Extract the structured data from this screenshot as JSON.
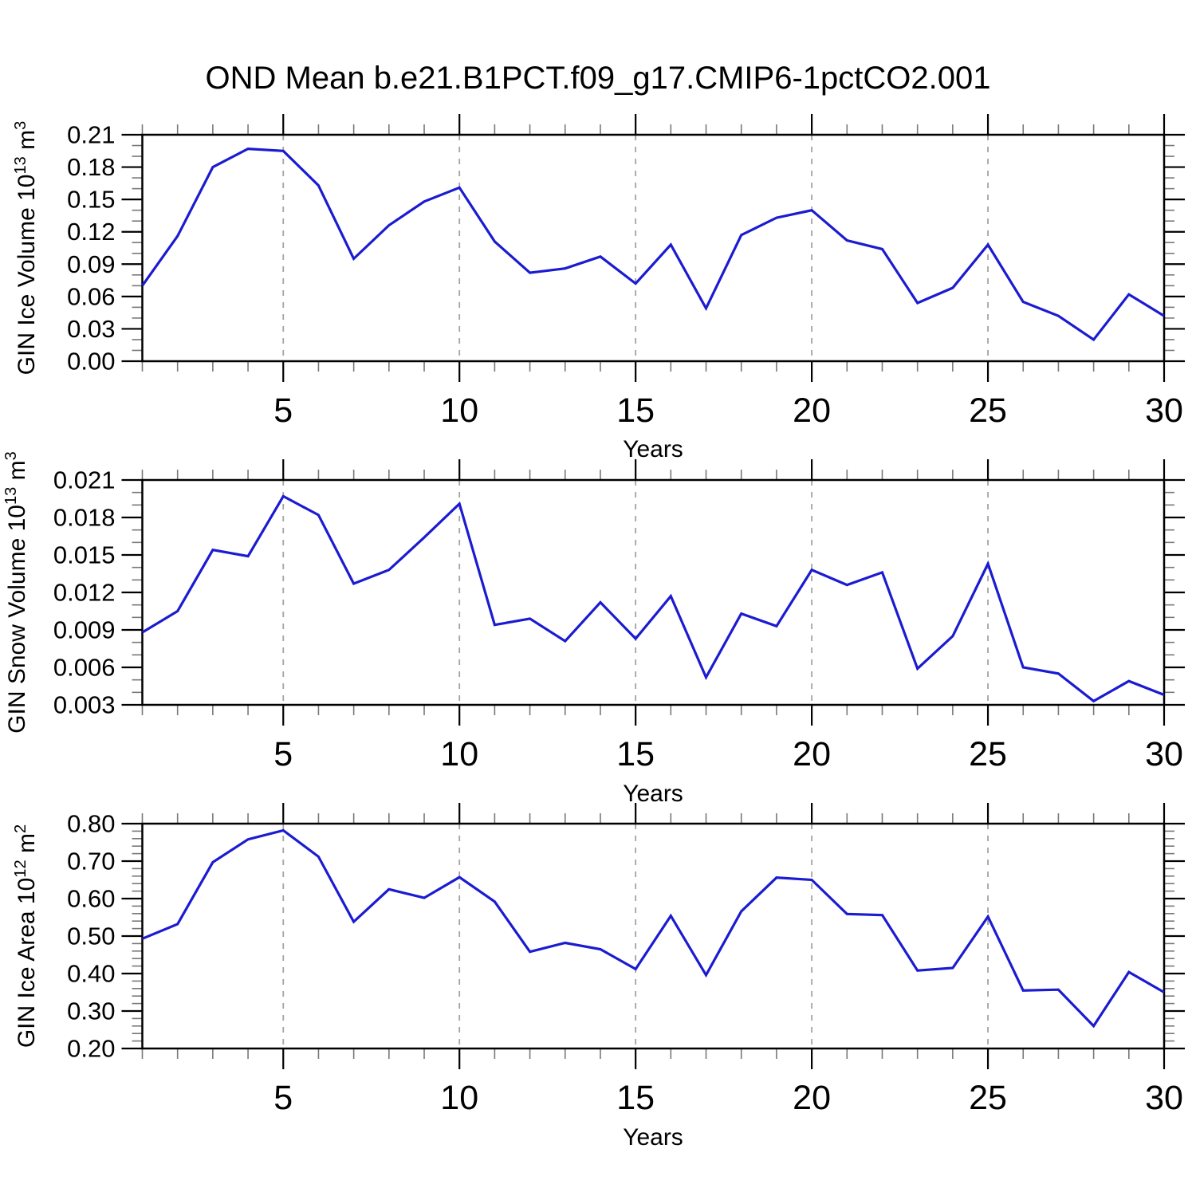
{
  "title": "OND Mean b.e21.B1PCT.f09_g17.CMIP6-1pctCO2.001",
  "colors": {
    "line": "#1b1bd1",
    "grid": "#a3a3a3",
    "axis": "#000000",
    "minor_tick": "#787878",
    "text": "#000000",
    "background": "#ffffff"
  },
  "chart_data": [
    {
      "type": "line",
      "title": "OND Mean b.e21.B1PCT.f09_g17.CMIP6-1pctCO2.001",
      "series_color": "#1b1bd1",
      "ylabel": {
        "prefix": "GIN Ice Volume 10",
        "exp": "13",
        "unit": " m",
        "unit_exp": "3"
      },
      "xlabel": "Years",
      "xlim": [
        1,
        30
      ],
      "ylim": [
        0.0,
        0.21
      ],
      "grid": "vertical-dashed",
      "legend": "none",
      "x": [
        1,
        2,
        3,
        4,
        5,
        6,
        7,
        8,
        9,
        10,
        11,
        12,
        13,
        14,
        15,
        16,
        17,
        18,
        19,
        20,
        21,
        22,
        23,
        24,
        25,
        26,
        27,
        28,
        29,
        30
      ],
      "values": [
        0.07,
        0.116,
        0.18,
        0.197,
        0.195,
        0.163,
        0.095,
        0.126,
        0.148,
        0.161,
        0.111,
        0.082,
        0.086,
        0.097,
        0.072,
        0.108,
        0.049,
        0.117,
        0.133,
        0.14,
        0.112,
        0.104,
        0.054,
        0.068,
        0.108,
        0.055,
        0.042,
        0.02,
        0.062,
        0.042
      ],
      "yticks": [
        {
          "v": 0.0,
          "label": "0.00"
        },
        {
          "v": 0.03,
          "label": "0.03"
        },
        {
          "v": 0.06,
          "label": "0.06"
        },
        {
          "v": 0.09,
          "label": "0.09"
        },
        {
          "v": 0.12,
          "label": "0.12"
        },
        {
          "v": 0.15,
          "label": "0.15"
        },
        {
          "v": 0.18,
          "label": "0.18"
        },
        {
          "v": 0.21,
          "label": "0.21"
        }
      ],
      "yminor_step": 0.01,
      "xticks": [
        {
          "v": 5,
          "label": "5"
        },
        {
          "v": 10,
          "label": "10"
        },
        {
          "v": 15,
          "label": "15"
        },
        {
          "v": 20,
          "label": "20"
        },
        {
          "v": 25,
          "label": "25"
        },
        {
          "v": 30,
          "label": "30"
        }
      ],
      "xminor_step": 1,
      "grid_x": [
        5,
        10,
        15,
        20,
        25
      ]
    },
    {
      "type": "line",
      "title": "",
      "series_color": "#1b1bd1",
      "ylabel": {
        "prefix": "GIN Snow Volume 10",
        "exp": "13",
        "unit": " m",
        "unit_exp": "3"
      },
      "xlabel": "Years",
      "xlim": [
        1,
        30
      ],
      "ylim": [
        0.003,
        0.021
      ],
      "grid": "vertical-dashed",
      "legend": "none",
      "x": [
        1,
        2,
        3,
        4,
        5,
        6,
        7,
        8,
        9,
        10,
        11,
        12,
        13,
        14,
        15,
        16,
        17,
        18,
        19,
        20,
        21,
        22,
        23,
        24,
        25,
        26,
        27,
        28,
        29,
        30
      ],
      "values": [
        0.0088,
        0.0105,
        0.0154,
        0.0149,
        0.0197,
        0.0182,
        0.0127,
        0.0138,
        0.0164,
        0.0191,
        0.0094,
        0.0099,
        0.0081,
        0.0112,
        0.0083,
        0.0117,
        0.0052,
        0.0103,
        0.0093,
        0.0138,
        0.0126,
        0.0136,
        0.0059,
        0.0085,
        0.0143,
        0.006,
        0.0055,
        0.0033,
        0.0049,
        0.0038
      ],
      "yticks": [
        {
          "v": 0.003,
          "label": "0.003"
        },
        {
          "v": 0.006,
          "label": "0.006"
        },
        {
          "v": 0.009,
          "label": "0.009"
        },
        {
          "v": 0.012,
          "label": "0.012"
        },
        {
          "v": 0.015,
          "label": "0.015"
        },
        {
          "v": 0.018,
          "label": "0.018"
        },
        {
          "v": 0.021,
          "label": "0.021"
        }
      ],
      "yminor_step": 0.001,
      "xticks": [
        {
          "v": 5,
          "label": "5"
        },
        {
          "v": 10,
          "label": "10"
        },
        {
          "v": 15,
          "label": "15"
        },
        {
          "v": 20,
          "label": "20"
        },
        {
          "v": 25,
          "label": "25"
        },
        {
          "v": 30,
          "label": "30"
        }
      ],
      "xminor_step": 1,
      "grid_x": [
        5,
        10,
        15,
        20,
        25
      ]
    },
    {
      "type": "line",
      "title": "",
      "series_color": "#1b1bd1",
      "ylabel": {
        "prefix": "GIN Ice Area 10",
        "exp": "12",
        "unit": " m",
        "unit_exp": "2"
      },
      "xlabel": "Years",
      "xlim": [
        1,
        30
      ],
      "ylim": [
        0.2,
        0.8
      ],
      "grid": "vertical-dashed",
      "legend": "none",
      "x": [
        1,
        2,
        3,
        4,
        5,
        6,
        7,
        8,
        9,
        10,
        11,
        12,
        13,
        14,
        15,
        16,
        17,
        18,
        19,
        20,
        21,
        22,
        23,
        24,
        25,
        26,
        27,
        28,
        29,
        30
      ],
      "values": [
        0.493,
        0.532,
        0.697,
        0.758,
        0.782,
        0.712,
        0.538,
        0.625,
        0.602,
        0.657,
        0.592,
        0.458,
        0.482,
        0.465,
        0.412,
        0.554,
        0.396,
        0.566,
        0.656,
        0.65,
        0.559,
        0.556,
        0.408,
        0.415,
        0.552,
        0.355,
        0.357,
        0.26,
        0.404,
        0.35
      ],
      "yticks": [
        {
          "v": 0.2,
          "label": "0.20"
        },
        {
          "v": 0.3,
          "label": "0.30"
        },
        {
          "v": 0.4,
          "label": "0.40"
        },
        {
          "v": 0.5,
          "label": "0.50"
        },
        {
          "v": 0.6,
          "label": "0.60"
        },
        {
          "v": 0.7,
          "label": "0.70"
        },
        {
          "v": 0.8,
          "label": "0.80"
        }
      ],
      "yminor_step": 0.02,
      "xticks": [
        {
          "v": 5,
          "label": "5"
        },
        {
          "v": 10,
          "label": "10"
        },
        {
          "v": 15,
          "label": "15"
        },
        {
          "v": 20,
          "label": "20"
        },
        {
          "v": 25,
          "label": "25"
        },
        {
          "v": 30,
          "label": "30"
        }
      ],
      "xminor_step": 1,
      "grid_x": [
        5,
        10,
        15,
        20,
        25
      ]
    }
  ]
}
